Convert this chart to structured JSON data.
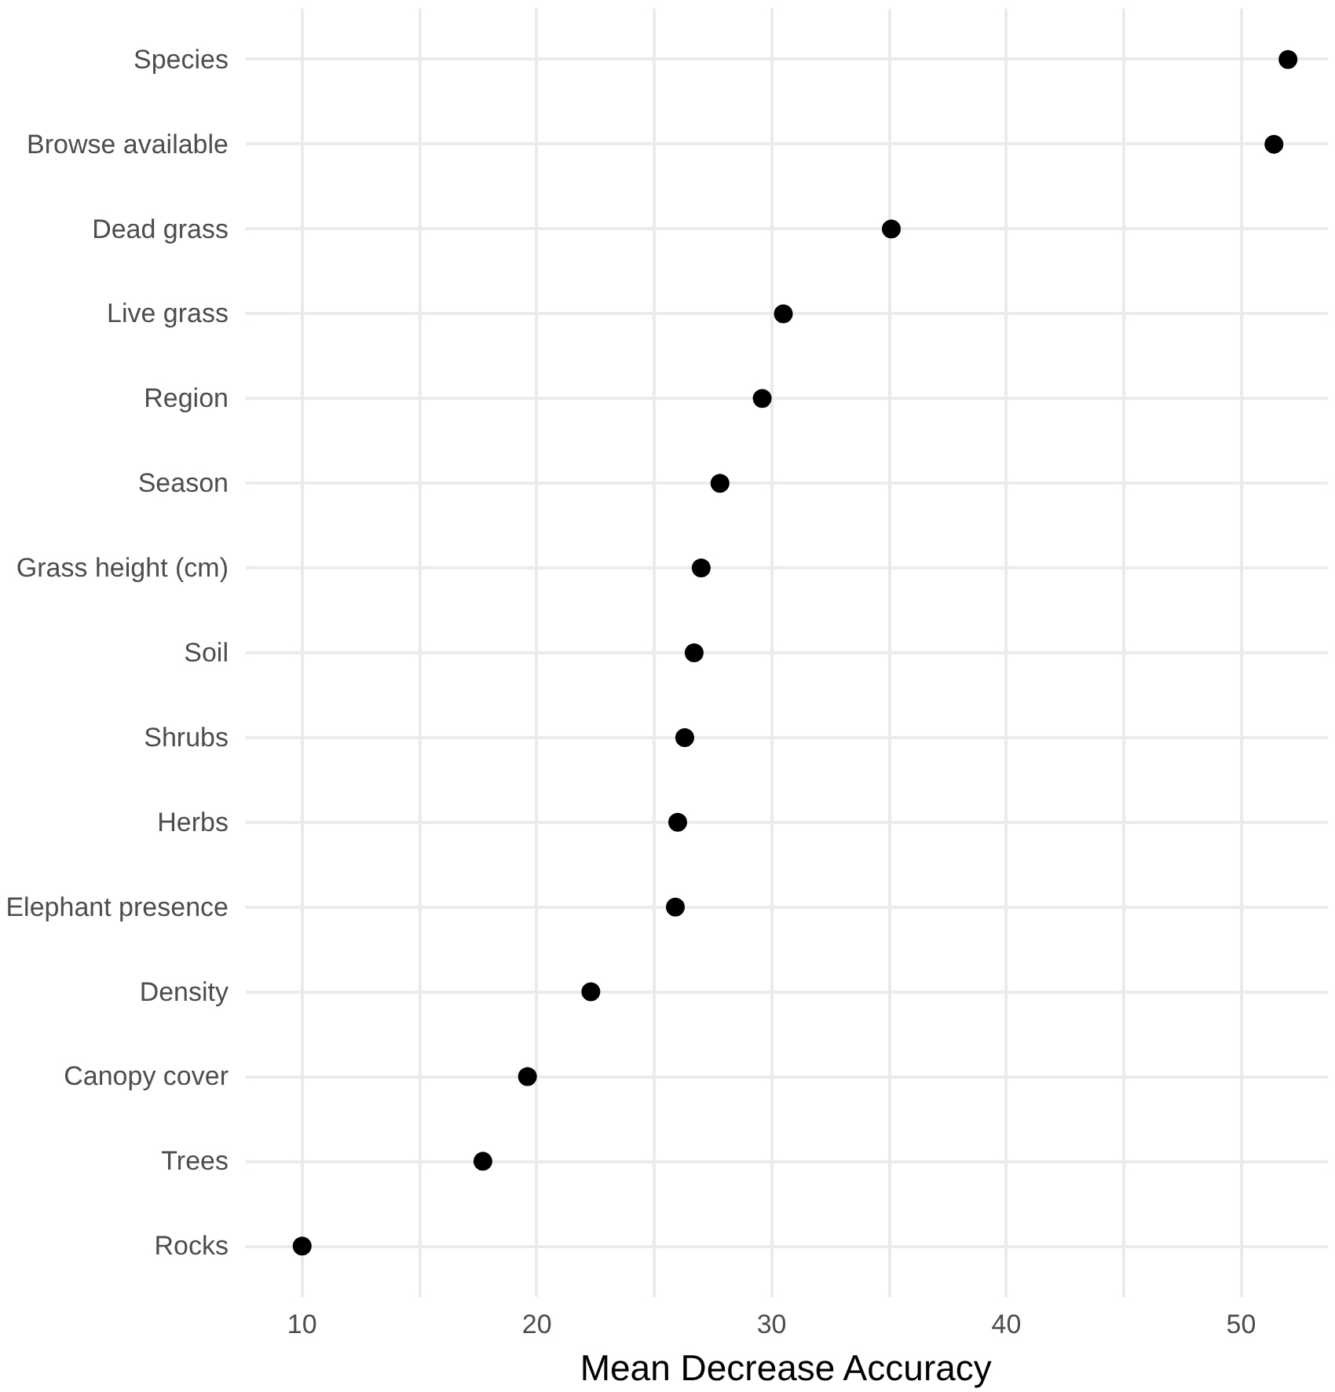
{
  "chart_data": {
    "type": "scatter",
    "orientation": "horizontal",
    "xlabel": "Mean Decrease Accuracy",
    "categories": [
      "Species",
      "Browse available",
      "Dead grass",
      "Live grass",
      "Region",
      "Season",
      "Grass height (cm)",
      "Soil",
      "Shrubs",
      "Herbs",
      "Elephant presence",
      "Density",
      "Canopy cover",
      "Trees",
      "Rocks"
    ],
    "values": [
      52.0,
      51.4,
      35.1,
      30.5,
      29.6,
      27.8,
      27.0,
      26.7,
      26.3,
      26.0,
      25.9,
      22.3,
      19.6,
      17.7,
      10.0
    ],
    "color": "#000000",
    "marker": "circle",
    "xlim": [
      7.6,
      53.7
    ],
    "xticks": [
      10,
      {
        "value": 15,
        "label": null
      },
      20,
      {
        "value": 25,
        "label": null
      },
      30,
      {
        "value": 35,
        "label": null
      },
      40,
      {
        "value": 45,
        "label": null
      },
      50
    ],
    "grid": true
  }
}
